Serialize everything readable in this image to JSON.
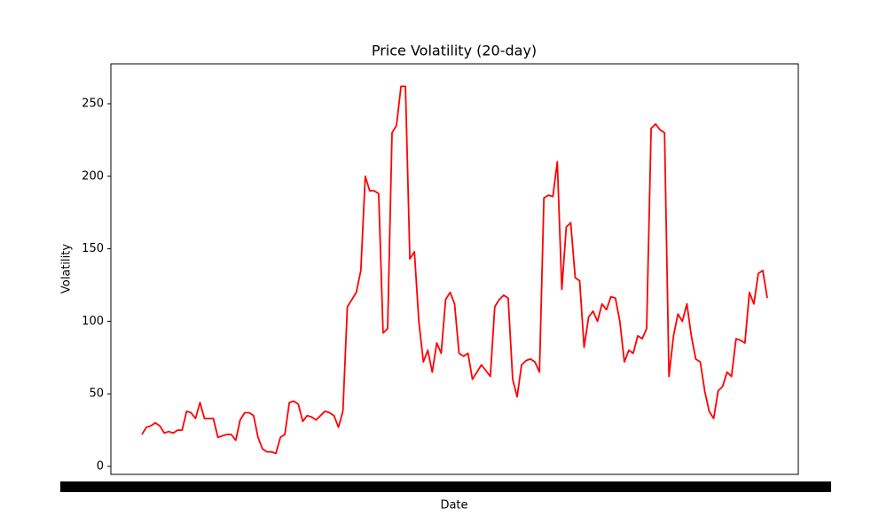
{
  "chart_data": {
    "type": "line",
    "title": "Price Volatility (20-day)",
    "x_label": "Date",
    "y_label": "Volatility",
    "series": [
      {
        "name": "Volatility",
        "color": "#ff0000",
        "values": [
          22,
          27,
          28,
          30,
          28,
          23,
          24,
          23,
          25,
          25,
          38,
          37,
          33,
          44,
          33,
          33,
          33,
          20,
          21,
          22,
          22,
          18,
          32,
          37,
          37,
          35,
          20,
          12,
          10,
          10,
          9,
          20,
          22,
          44,
          45,
          43,
          31,
          35,
          34,
          32,
          35,
          38,
          37,
          35,
          27,
          38,
          110,
          115,
          120,
          135,
          200,
          190,
          190,
          188,
          92,
          95,
          230,
          235,
          262,
          262,
          143,
          148,
          100,
          72,
          80,
          65,
          85,
          78,
          115,
          120,
          112,
          78,
          76,
          78,
          60,
          65,
          70,
          66,
          62,
          110,
          115,
          118,
          116,
          60,
          48,
          70,
          73,
          74,
          72,
          65,
          185,
          187,
          186,
          210,
          122,
          165,
          168,
          130,
          128,
          82,
          103,
          107,
          100,
          112,
          108,
          117,
          116,
          100,
          72,
          80,
          78,
          90,
          88,
          95,
          233,
          236,
          232,
          230,
          62,
          90,
          105,
          100,
          112,
          90,
          74,
          72,
          52,
          38,
          33,
          52,
          55,
          65,
          62,
          88,
          87,
          85,
          120,
          112,
          133,
          135,
          116
        ]
      }
    ],
    "ylim": [
      -5.5,
      277.5
    ],
    "yticks": [
      0,
      50,
      100,
      150,
      200,
      250
    ],
    "grid": false
  }
}
